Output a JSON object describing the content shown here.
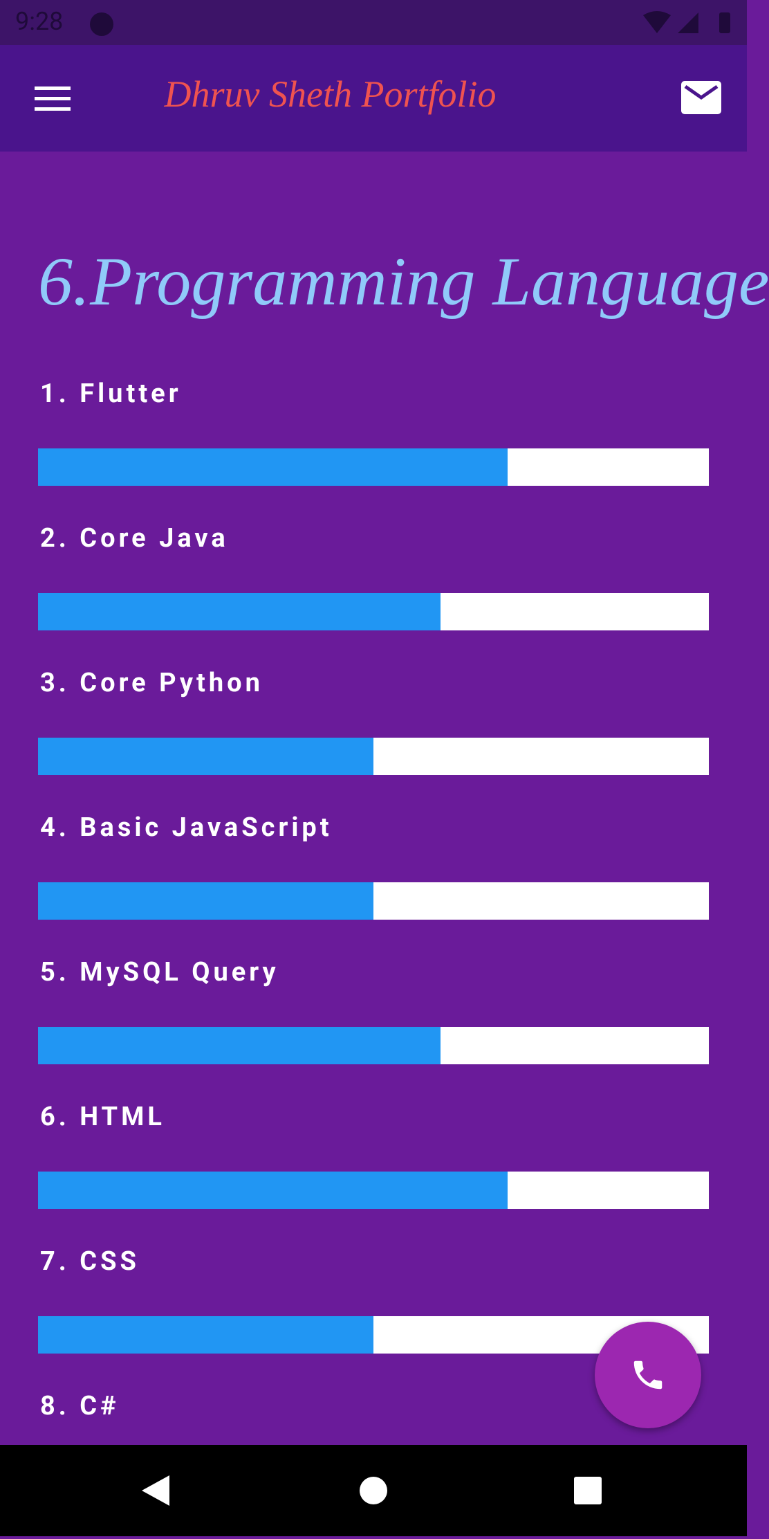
{
  "status_bar": {
    "time": "9:28"
  },
  "app_bar": {
    "title": "Dhruv Sheth Portfolio"
  },
  "section": {
    "title": "6.Programming Language"
  },
  "skills": [
    {
      "label": "1. Flutter",
      "level": 0.7
    },
    {
      "label": "2. Core Java",
      "level": 0.6
    },
    {
      "label": "3. Core Python",
      "level": 0.5
    },
    {
      "label": "4. Basic JavaScript",
      "level": 0.5
    },
    {
      "label": "5. MySQL Query",
      "level": 0.6
    },
    {
      "label": "6. HTML",
      "level": 0.7
    },
    {
      "label": "7. CSS",
      "level": 0.5
    },
    {
      "label": "8. C#"
    }
  ]
}
